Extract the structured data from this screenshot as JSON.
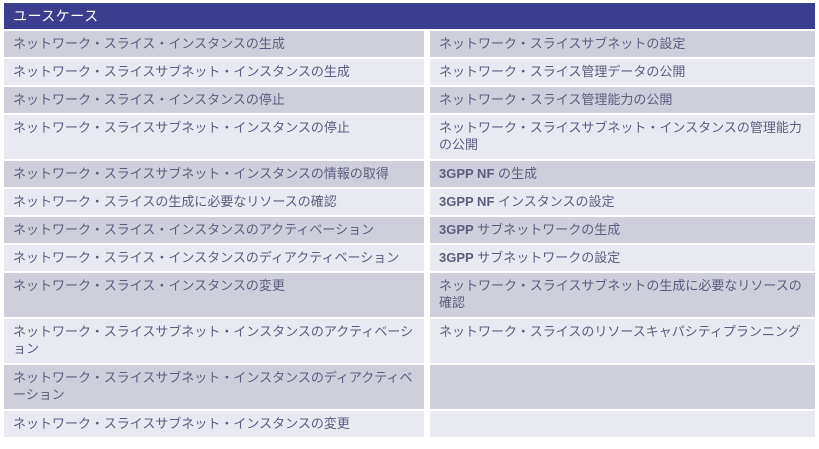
{
  "colors": {
    "header_bg": "#3b3e8e",
    "header_text": "#ffffff",
    "row_dark": "#cfcfdc",
    "row_light": "#e9e9f1",
    "text": "#5c5d7e",
    "page_bg": "#ffffff"
  },
  "table": {
    "header": "ユースケース",
    "rows": [
      {
        "left": "ネットワーク・スライス・インスタンスの生成",
        "right_bold": "",
        "right": "ネットワーク・スライスサブネットの設定"
      },
      {
        "left": "ネットワーク・スライスサブネット・インスタンスの生成",
        "right_bold": "",
        "right": "ネットワーク・スライス管理データの公開"
      },
      {
        "left": "ネットワーク・スライス・インスタンスの停止",
        "right_bold": "",
        "right": "ネットワーク・スライス管理能力の公開"
      },
      {
        "left": "ネットワーク・スライスサブネット・インスタンスの停止",
        "right_bold": "",
        "right": "ネットワーク・スライスサブネット・インスタンスの管理能力の公開"
      },
      {
        "left": "ネットワーク・スライスサブネット・インスタンスの情報の取得",
        "right_bold": "3GPP NF",
        "right": " の生成"
      },
      {
        "left": "ネットワーク・スライスの生成に必要なリソースの確認",
        "right_bold": "3GPP NF",
        "right": " インスタンスの設定"
      },
      {
        "left": "ネットワーク・スライス・インスタンスのアクティベーション",
        "right_bold": "3GPP",
        "right": " サブネットワークの生成"
      },
      {
        "left": "ネットワーク・スライス・インスタンスのディアクティベーション",
        "right_bold": "3GPP",
        "right": " サブネットワークの設定"
      },
      {
        "left": "ネットワーク・スライス・インスタンスの変更",
        "right_bold": "",
        "right": "ネットワーク・スライスサブネットの生成に必要なリソースの確認"
      },
      {
        "left": "ネットワーク・スライスサブネット・インスタンスのアクティベーション",
        "right_bold": "",
        "right": "ネットワーク・スライスのリソースキャパシティプランニング"
      },
      {
        "left": "ネットワーク・スライスサブネット・インスタンスのディアクティベーション",
        "right_bold": "",
        "right": ""
      },
      {
        "left": "ネットワーク・スライスサブネット・インスタンスの変更",
        "right_bold": "",
        "right": ""
      }
    ]
  }
}
